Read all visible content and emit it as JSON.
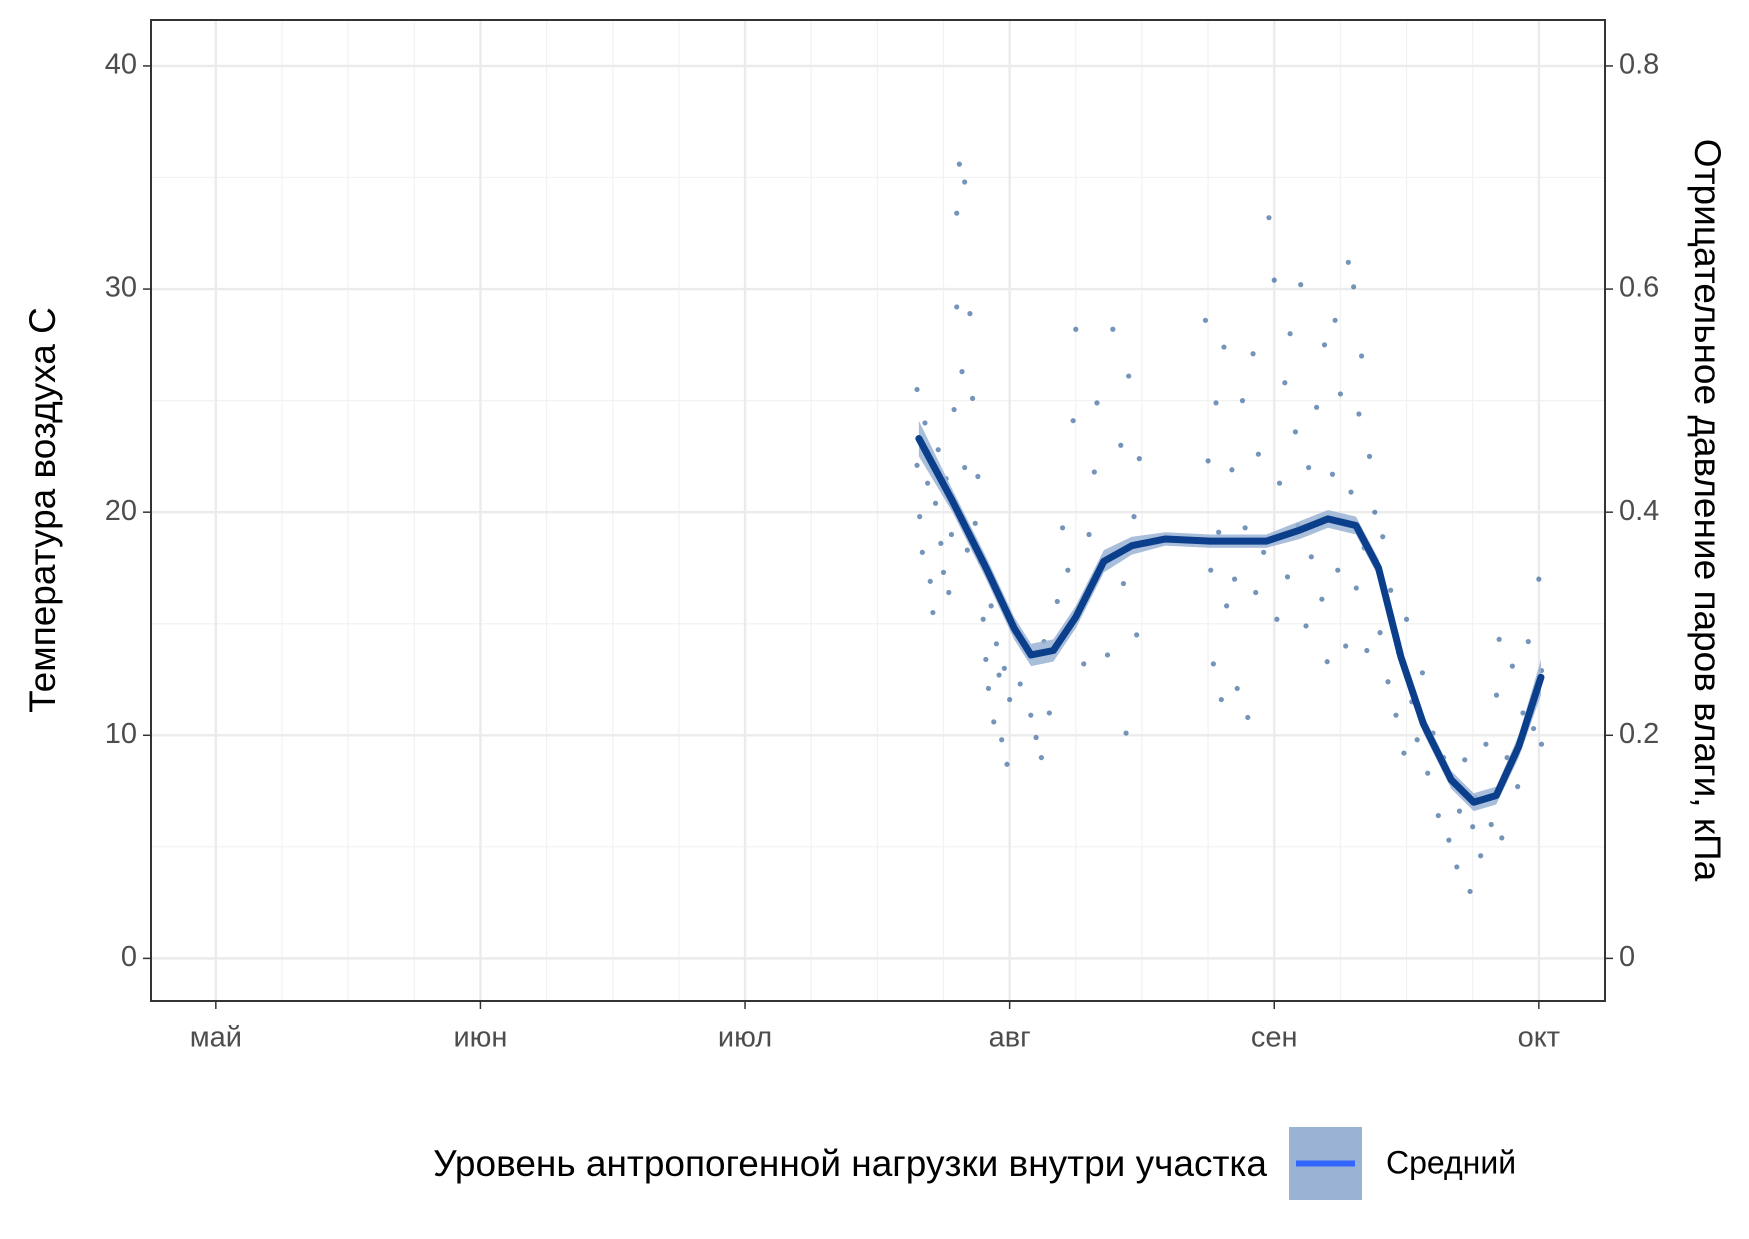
{
  "chart_data": {
    "type": "scatter",
    "y_label": "Температура воздуха   С",
    "y2_label": "Отрицательное давление паров влаги, кПа",
    "xlim": [
      4.755,
      10.25
    ],
    "xticks": [
      {
        "value": 5,
        "label": "май"
      },
      {
        "value": 6,
        "label": "июн"
      },
      {
        "value": 7,
        "label": "июл"
      },
      {
        "value": 8,
        "label": "авг"
      },
      {
        "value": 9,
        "label": "сен"
      },
      {
        "value": 10,
        "label": "окт"
      }
    ],
    "ylim": [
      -1.91,
      42.06
    ],
    "yticks": [
      0,
      10,
      20,
      30,
      40
    ],
    "y2lim": [
      -0.0382,
      0.8412
    ],
    "y2ticks": [
      0,
      0.2,
      0.4,
      0.6,
      0.8
    ],
    "grid": true,
    "legend_title": "Уровень антропогенной нагрузки внутри участка",
    "legend_position": "bottom",
    "points": {
      "color": "#2a5b94",
      "x": [
        7.65,
        7.65,
        7.66,
        7.67,
        7.68,
        7.69,
        7.7,
        7.71,
        7.72,
        7.73,
        7.74,
        7.75,
        7.76,
        7.77,
        7.78,
        7.79,
        7.8,
        7.8,
        7.81,
        7.82,
        7.83,
        7.83,
        7.84,
        7.85,
        7.86,
        7.87,
        7.88,
        7.89,
        7.9,
        7.91,
        7.92,
        7.93,
        7.94,
        7.95,
        7.96,
        7.97,
        7.98,
        7.99,
        8.0,
        8.02,
        8.04,
        8.06,
        8.08,
        8.1,
        8.12,
        8.13,
        8.15,
        8.18,
        8.2,
        8.22,
        8.24,
        8.25,
        8.26,
        8.28,
        8.3,
        8.32,
        8.33,
        8.35,
        8.37,
        8.39,
        8.42,
        8.43,
        8.44,
        8.45,
        8.47,
        8.48,
        8.49,
        8.74,
        8.75,
        8.76,
        8.77,
        8.78,
        8.79,
        8.8,
        8.81,
        8.82,
        8.84,
        8.85,
        8.86,
        8.88,
        8.89,
        8.9,
        8.92,
        8.93,
        8.94,
        8.96,
        8.98,
        9.0,
        9.01,
        9.02,
        9.04,
        9.05,
        9.06,
        9.08,
        9.09,
        9.1,
        9.12,
        9.13,
        9.14,
        9.16,
        9.18,
        9.19,
        9.2,
        9.22,
        9.23,
        9.24,
        9.25,
        9.27,
        9.28,
        9.29,
        9.3,
        9.31,
        9.32,
        9.33,
        9.34,
        9.35,
        9.36,
        9.38,
        9.4,
        9.41,
        9.43,
        9.44,
        9.46,
        9.47,
        9.49,
        9.5,
        9.52,
        9.54,
        9.56,
        9.58,
        9.6,
        9.62,
        9.64,
        9.66,
        9.68,
        9.69,
        9.7,
        9.72,
        9.74,
        9.75,
        9.76,
        9.78,
        9.8,
        9.82,
        9.84,
        9.85,
        9.86,
        9.88,
        9.9,
        9.92,
        9.94,
        9.96,
        9.98,
        10.0,
        10.01,
        10.01
      ],
      "y": [
        25.5,
        22.1,
        19.8,
        18.2,
        24.0,
        21.3,
        16.9,
        15.5,
        20.4,
        22.8,
        18.6,
        17.3,
        21.5,
        16.4,
        19.0,
        24.6,
        29.2,
        33.4,
        35.6,
        26.3,
        22.0,
        34.8,
        18.3,
        28.9,
        25.1,
        19.5,
        21.6,
        17.8,
        15.2,
        13.4,
        12.1,
        15.8,
        10.6,
        14.1,
        12.7,
        9.8,
        13.0,
        8.7,
        11.6,
        14.6,
        12.3,
        13.9,
        10.9,
        9.9,
        9.0,
        14.2,
        11.0,
        16.0,
        19.3,
        17.4,
        24.1,
        28.2,
        15.6,
        13.2,
        19.0,
        21.8,
        24.9,
        17.5,
        13.6,
        28.2,
        23.0,
        16.8,
        10.1,
        26.1,
        19.8,
        14.5,
        22.4,
        28.6,
        22.3,
        17.4,
        13.2,
        24.9,
        19.1,
        11.6,
        27.4,
        15.8,
        21.9,
        17.0,
        12.1,
        25.0,
        19.3,
        10.8,
        27.1,
        16.4,
        22.6,
        18.2,
        33.2,
        30.4,
        15.2,
        21.3,
        25.8,
        17.1,
        28.0,
        23.6,
        19.4,
        30.2,
        14.9,
        22.0,
        18.0,
        24.7,
        16.1,
        27.5,
        13.3,
        21.7,
        28.6,
        17.4,
        25.3,
        14.0,
        31.2,
        20.9,
        30.1,
        16.6,
        24.4,
        27.0,
        18.4,
        13.8,
        22.5,
        20.0,
        14.6,
        18.9,
        12.4,
        16.5,
        10.9,
        13.7,
        9.2,
        15.2,
        11.5,
        9.8,
        12.8,
        8.3,
        10.1,
        6.4,
        9.0,
        5.3,
        7.8,
        4.1,
        6.6,
        8.9,
        3.0,
        5.9,
        7.2,
        4.6,
        9.6,
        6.0,
        11.8,
        14.3,
        5.4,
        9.0,
        13.1,
        7.7,
        11.0,
        14.2,
        10.3,
        17.0,
        12.9,
        9.6
      ]
    },
    "series": [
      {
        "name": "Средний",
        "color": "#0b3f8c",
        "legend_color": "#3366ff",
        "band_color": "#9ab3d5",
        "x": [
          7.657,
          7.784,
          7.911,
          8.017,
          8.081,
          8.165,
          8.25,
          8.356,
          8.462,
          8.589,
          8.758,
          8.97,
          9.097,
          9.203,
          9.309,
          9.394,
          9.479,
          9.564,
          9.669,
          9.754,
          9.839,
          9.924,
          10.008
        ],
        "values": [
          23.3,
          20.5,
          17.5,
          14.8,
          13.6,
          13.8,
          15.3,
          17.8,
          18.5,
          18.8,
          18.7,
          18.7,
          19.2,
          19.7,
          19.4,
          17.5,
          13.5,
          10.5,
          8.0,
          7.0,
          7.3,
          9.5,
          12.6
        ],
        "lower": [
          22.5,
          20.0,
          17.0,
          14.3,
          13.1,
          13.3,
          14.8,
          17.3,
          18.1,
          18.5,
          18.4,
          18.4,
          18.8,
          19.3,
          19.0,
          17.1,
          13.1,
          10.1,
          7.6,
          6.6,
          6.9,
          9.0,
          11.8
        ],
        "upper": [
          24.1,
          21.0,
          18.0,
          15.3,
          14.1,
          14.3,
          15.8,
          18.3,
          18.9,
          19.1,
          19.0,
          19.0,
          19.6,
          20.1,
          19.8,
          17.9,
          13.9,
          10.9,
          8.4,
          7.4,
          7.7,
          10.0,
          13.4
        ]
      }
    ]
  }
}
